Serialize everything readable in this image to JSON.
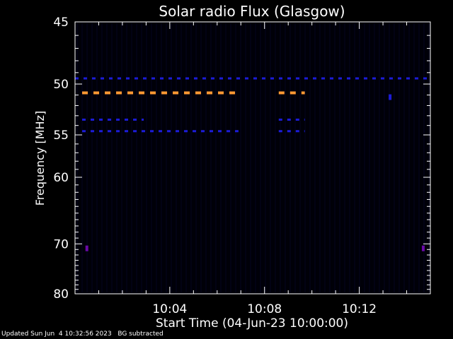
{
  "chart_data": {
    "type": "heatmap",
    "title": "Solar radio Flux (Glasgow)",
    "xlabel": "Start Time (04-Jun-23 10:00:00)",
    "ylabel": "Frequency [MHz]",
    "x_unit": "minutes after 10:00",
    "xlim": [
      0,
      15
    ],
    "ylim": [
      45,
      80
    ],
    "y_tick_labels": [
      "45",
      "50",
      "55",
      "60",
      "70",
      "80"
    ],
    "x_tick_labels": [
      "10:04",
      "10:08",
      "10:12"
    ],
    "x_tick_values": [
      4,
      8,
      12
    ],
    "background_color": "#000008",
    "colors": {
      "faint": "#1c1cd8",
      "strong": "#ff9933",
      "weak": "#6a0aa8",
      "axis": "#ffffff"
    },
    "bands": [
      {
        "label": "49.5 MHz",
        "freq_mhz": 49.5,
        "intensity": "faint",
        "x_start": 0,
        "x_end": 15
      },
      {
        "label": "50.8 MHz",
        "freq_mhz": 50.8,
        "intensity": "strong",
        "x_start": 0.3,
        "x_end": 6.9
      },
      {
        "label": "50.8 MHz",
        "freq_mhz": 50.8,
        "intensity": "strong",
        "x_start": 8.6,
        "x_end": 9.7
      },
      {
        "label": "53.4 MHz",
        "freq_mhz": 53.4,
        "intensity": "faint",
        "x_start": 0.3,
        "x_end": 2.9
      },
      {
        "label": "53.4 MHz",
        "freq_mhz": 53.4,
        "intensity": "faint",
        "x_start": 8.6,
        "x_end": 9.7
      },
      {
        "label": "54.6 MHz",
        "freq_mhz": 54.6,
        "intensity": "faint",
        "x_start": 0.3,
        "x_end": 6.9
      },
      {
        "label": "54.6 MHz",
        "freq_mhz": 54.6,
        "intensity": "faint",
        "x_start": 8.6,
        "x_end": 9.7
      }
    ],
    "points": [
      {
        "freq_mhz": 70.8,
        "x": 0.5,
        "intensity": "weak"
      },
      {
        "freq_mhz": 70.8,
        "x": 14.7,
        "intensity": "weak"
      },
      {
        "freq_mhz": 51.2,
        "x": 13.3,
        "intensity": "faint"
      }
    ]
  },
  "footer": {
    "updated": "Updated Sun Jun  4 10:32:56 2023",
    "note": "BG subtracted"
  }
}
